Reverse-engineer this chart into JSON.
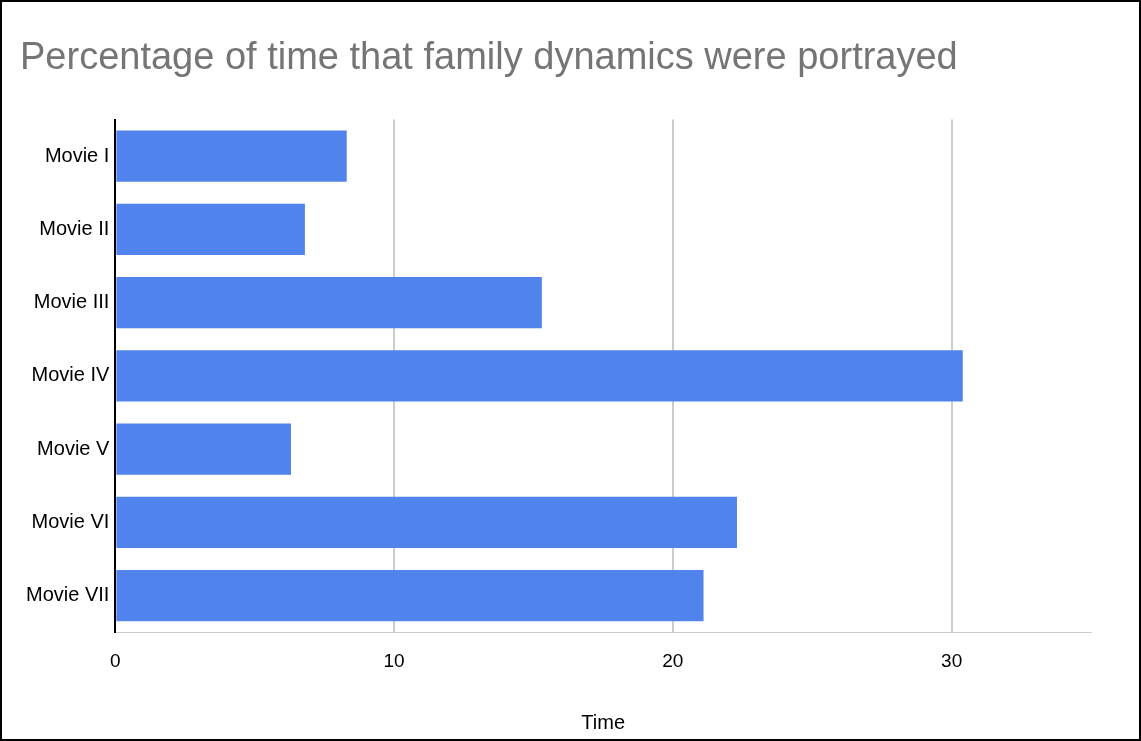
{
  "chart_data": {
    "type": "bar",
    "orientation": "horizontal",
    "title": "Percentage of time that family dynamics were portrayed",
    "xlabel": "Time",
    "categories": [
      "Movie I",
      "Movie II",
      "Movie III",
      "Movie IV",
      "Movie V",
      "Movie VI",
      "Movie VII"
    ],
    "values": [
      8.3,
      6.8,
      15.3,
      30.4,
      6.3,
      22.3,
      21.1
    ],
    "color": "#5083ec",
    "xlim": [
      0,
      35
    ],
    "xticks": [
      0,
      10,
      20,
      30
    ],
    "grid": "x",
    "legend": false
  }
}
